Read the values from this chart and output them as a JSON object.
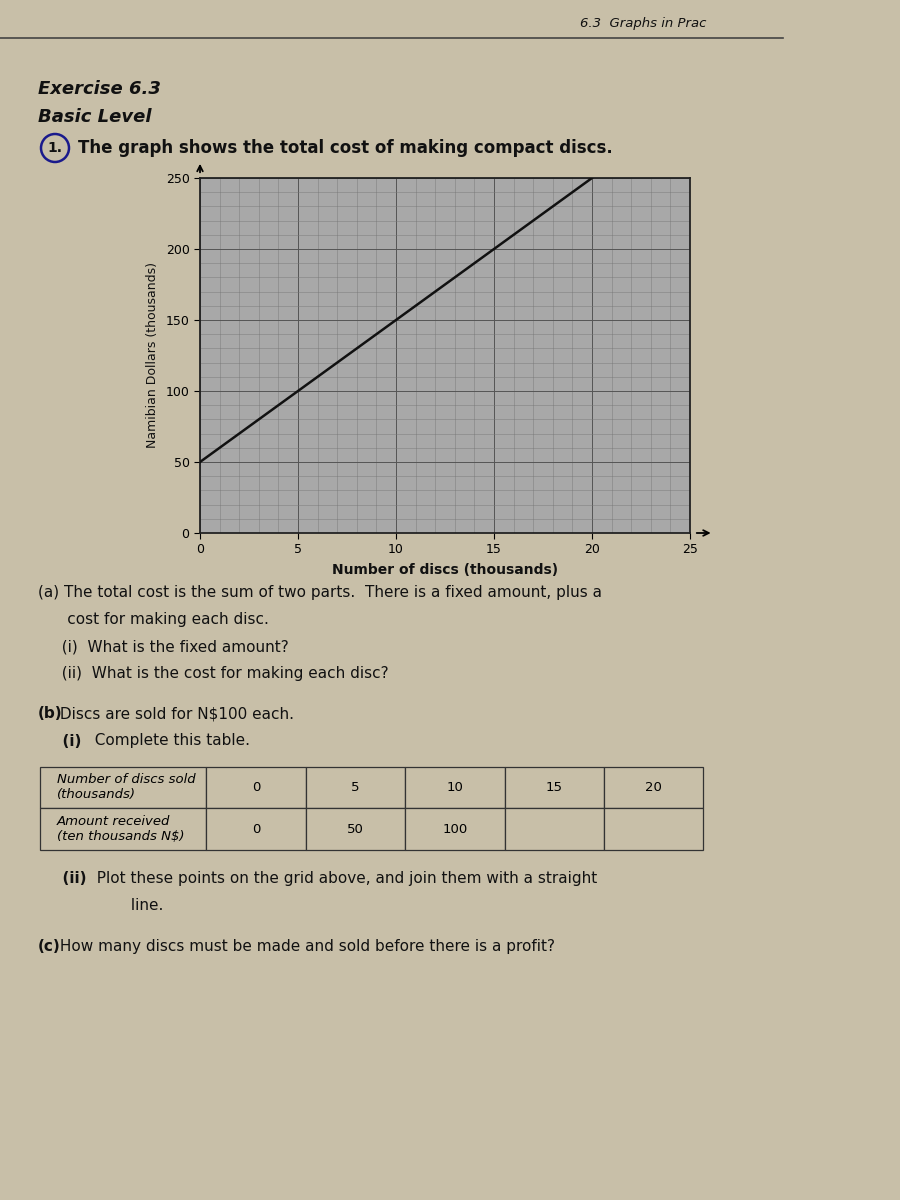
{
  "page_title": "6.3  Graphs in Prac",
  "exercise_title": "Exercise 6.3",
  "level_title": "Basic Level",
  "question_text": "The graph shows the total cost of making compact discs.",
  "graph": {
    "xlim": [
      0,
      25
    ],
    "ylim": [
      0,
      250
    ],
    "xticks": [
      0,
      5,
      10,
      15,
      20,
      25
    ],
    "yticks": [
      0,
      50,
      100,
      150,
      200,
      250
    ],
    "xlabel": "Number of discs (thousands)",
    "ylabel": "Namibian Dollars (thousands)",
    "cost_line_x": [
      0,
      20
    ],
    "cost_line_y": [
      50,
      250
    ],
    "minor_x_step": 1,
    "minor_y_step": 10,
    "grid_major_color": "#555555",
    "grid_minor_color": "#777777",
    "line_color": "#111111",
    "bg_color": "#a8a8a8"
  },
  "part_a_text1": "(a) The total cost is the sum of two parts.  There is a fixed amount, plus a",
  "part_a_text2": "      cost for making each disc.",
  "part_a_i": "  (i)  What is the fixed amount?",
  "part_a_ii": "  (ii)  What is the cost for making each disc?",
  "part_b_bold": "(b)",
  "part_b_text": " Discs are sold for N$100 each.",
  "part_b_i_bold": "  (i)",
  "part_b_i_text": "  Complete this table.",
  "table_col_headers": [
    "Number of discs sold\n(thousands)",
    "0",
    "5",
    "10",
    "15",
    "20"
  ],
  "table_row2": [
    "Amount received\n(ten thousands N$)",
    "0",
    "50",
    "100",
    "",
    ""
  ],
  "part_b_ii_bold": "  (ii)",
  "part_b_ii_text": "  Plot these points on the grid above, and join them with a straight",
  "part_b_ii2": "         line.",
  "part_c_bold": "(c)",
  "part_c_text": " How many discs must be made and sold before there is a profit?",
  "bg_page_color": "#c8bfa8",
  "text_color": "#111111"
}
